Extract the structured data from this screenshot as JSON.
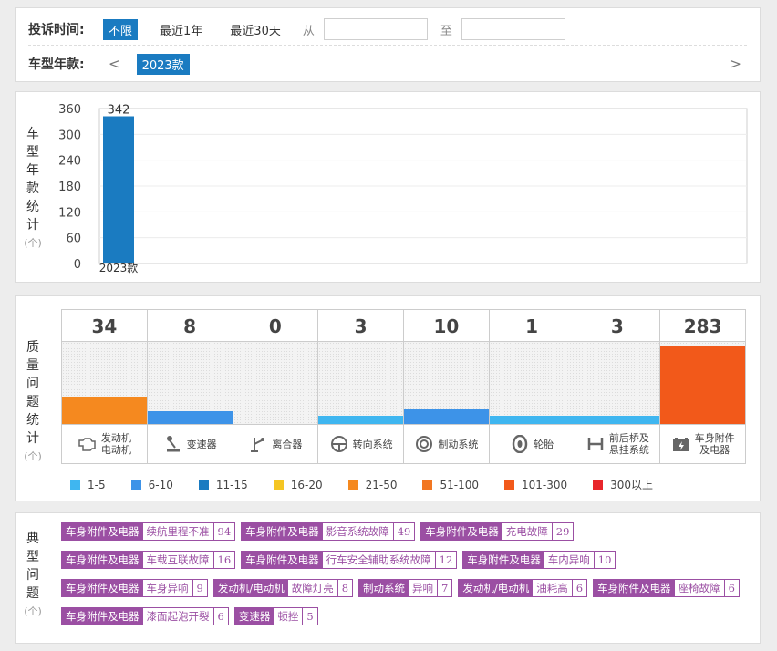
{
  "filter": {
    "time_label": "投诉时间:",
    "time_options": [
      "不限",
      "最近1年",
      "最近30天"
    ],
    "from_label": "从",
    "to_label": "至",
    "from_value": "",
    "to_value": "",
    "year_label": "车型年款:",
    "prev_arrow": "<",
    "next_arrow": ">",
    "selected_year": "2023款"
  },
  "year_stats": {
    "label_chars": [
      "车",
      "型",
      "年",
      "款",
      "统",
      "计"
    ],
    "unit": "(个)"
  },
  "chart_data": {
    "type": "bar",
    "categories": [
      "2023款"
    ],
    "values": [
      342
    ],
    "yticks": [
      0,
      60,
      120,
      180,
      240,
      300,
      360
    ],
    "ylim": [
      0,
      360
    ],
    "data_labels": [
      "342"
    ],
    "colors": {
      "bar": "#1a7bc1"
    }
  },
  "quality": {
    "label_chars": [
      "质",
      "量",
      "问",
      "题",
      "统",
      "计"
    ],
    "unit": "(个)",
    "max_count": 283,
    "columns": [
      {
        "count": "34",
        "value": 34,
        "label": "发动机\n电动机",
        "icon": "engine-icon",
        "color": "#f5891f"
      },
      {
        "count": "8",
        "value": 8,
        "label": "变速器",
        "icon": "gear-shift-icon",
        "color": "#3d93e8"
      },
      {
        "count": "0",
        "value": 0,
        "label": "离合器",
        "icon": "clutch-icon",
        "color": "#3d93e8"
      },
      {
        "count": "3",
        "value": 3,
        "label": "转向系统",
        "icon": "steering-wheel-icon",
        "color": "#3fb6f0"
      },
      {
        "count": "10",
        "value": 10,
        "label": "制动系统",
        "icon": "brake-disc-icon",
        "color": "#3d93e8"
      },
      {
        "count": "1",
        "value": 1,
        "label": "轮胎",
        "icon": "tire-icon",
        "color": "#3fb6f0"
      },
      {
        "count": "3",
        "value": 3,
        "label": "前后桥及\n悬挂系统",
        "icon": "axle-icon",
        "color": "#3fb6f0"
      },
      {
        "count": "283",
        "value": 283,
        "label": "车身附件\n及电器",
        "icon": "battery-icon",
        "color": "#f2591a"
      }
    ],
    "legend": [
      {
        "label": "1-5",
        "color": "#3fb6f0"
      },
      {
        "label": "6-10",
        "color": "#3d93e8"
      },
      {
        "label": "11-15",
        "color": "#1a7bc1"
      },
      {
        "label": "16-20",
        "color": "#f5c623"
      },
      {
        "label": "21-50",
        "color": "#f5891f"
      },
      {
        "label": "51-100",
        "color": "#f27722"
      },
      {
        "label": "101-300",
        "color": "#f2591a"
      },
      {
        "label": "300以上",
        "color": "#e8262b"
      }
    ]
  },
  "issues": {
    "label_chars": [
      "典",
      "型",
      "问",
      "题"
    ],
    "unit": "(个)",
    "tags": [
      {
        "category": "车身附件及电器",
        "name": "续航里程不准",
        "count": "94"
      },
      {
        "category": "车身附件及电器",
        "name": "影音系统故障",
        "count": "49"
      },
      {
        "category": "车身附件及电器",
        "name": "充电故障",
        "count": "29"
      },
      {
        "category": "车身附件及电器",
        "name": "车载互联故障",
        "count": "16"
      },
      {
        "category": "车身附件及电器",
        "name": "行车安全辅助系统故障",
        "count": "12"
      },
      {
        "category": "车身附件及电器",
        "name": "车内异响",
        "count": "10"
      },
      {
        "category": "车身附件及电器",
        "name": "车身异响",
        "count": "9"
      },
      {
        "category": "发动机/电动机",
        "name": "故障灯亮",
        "count": "8"
      },
      {
        "category": "制动系统",
        "name": "异响",
        "count": "7"
      },
      {
        "category": "发动机/电动机",
        "name": "油耗高",
        "count": "6"
      },
      {
        "category": "车身附件及电器",
        "name": "座椅故障",
        "count": "6"
      },
      {
        "category": "车身附件及电器",
        "name": "漆面起泡开裂",
        "count": "6"
      },
      {
        "category": "变速器",
        "name": "顿挫",
        "count": "5"
      }
    ]
  }
}
